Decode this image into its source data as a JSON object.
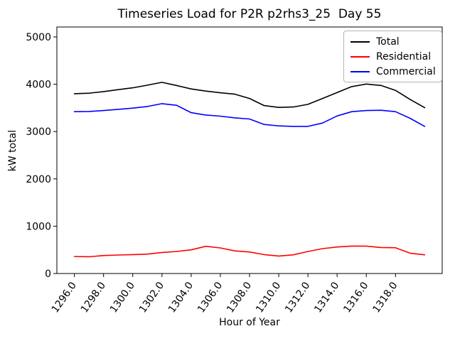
{
  "chart_data": {
    "type": "line",
    "title": "Timeseries Load for P2R p2rhs3_25  Day 55",
    "xlabel": "Hour of Year",
    "ylabel": "kW total",
    "x": [
      1296,
      1297,
      1298,
      1299,
      1300,
      1301,
      1302,
      1303,
      1304,
      1305,
      1306,
      1307,
      1308,
      1309,
      1310,
      1311,
      1312,
      1313,
      1314,
      1315,
      1316,
      1317,
      1318,
      1319,
      1320
    ],
    "series": [
      {
        "name": "Total",
        "color": "#000000",
        "values": [
          3800,
          3810,
          3845,
          3885,
          3925,
          3980,
          4040,
          3975,
          3900,
          3855,
          3820,
          3790,
          3700,
          3550,
          3510,
          3520,
          3575,
          3700,
          3825,
          3950,
          4005,
          3975,
          3870,
          3680,
          3505
        ]
      },
      {
        "name": "Residential",
        "color": "#ff0000",
        "values": [
          360,
          355,
          380,
          390,
          400,
          410,
          445,
          465,
          500,
          575,
          540,
          478,
          455,
          400,
          370,
          395,
          465,
          525,
          560,
          580,
          580,
          550,
          545,
          430,
          395
        ]
      },
      {
        "name": "Commercial",
        "color": "#0000ff",
        "values": [
          3420,
          3425,
          3445,
          3470,
          3495,
          3530,
          3590,
          3555,
          3400,
          3350,
          3325,
          3290,
          3265,
          3150,
          3120,
          3110,
          3110,
          3180,
          3330,
          3420,
          3445,
          3450,
          3420,
          3280,
          3110
        ]
      }
    ],
    "x_ticks": [
      1296,
      1298,
      1300,
      1302,
      1304,
      1306,
      1308,
      1310,
      1312,
      1314,
      1316,
      1318
    ],
    "x_tick_labels": [
      "1296.0",
      "1298.0",
      "1300.0",
      "1302.0",
      "1304.0",
      "1306.0",
      "1308.0",
      "1310.0",
      "1312.0",
      "1314.0",
      "1316.0",
      "1318.0"
    ],
    "y_ticks": [
      0,
      1000,
      2000,
      3000,
      4000,
      5000
    ],
    "y_tick_labels": [
      "0",
      "1000",
      "2000",
      "3000",
      "4000",
      "5000"
    ],
    "xlim": [
      1294.8,
      1321.2
    ],
    "ylim": [
      0,
      5210
    ],
    "grid": false,
    "legend": {
      "position": "upper right",
      "entries": [
        "Total",
        "Residential",
        "Commercial"
      ]
    }
  }
}
